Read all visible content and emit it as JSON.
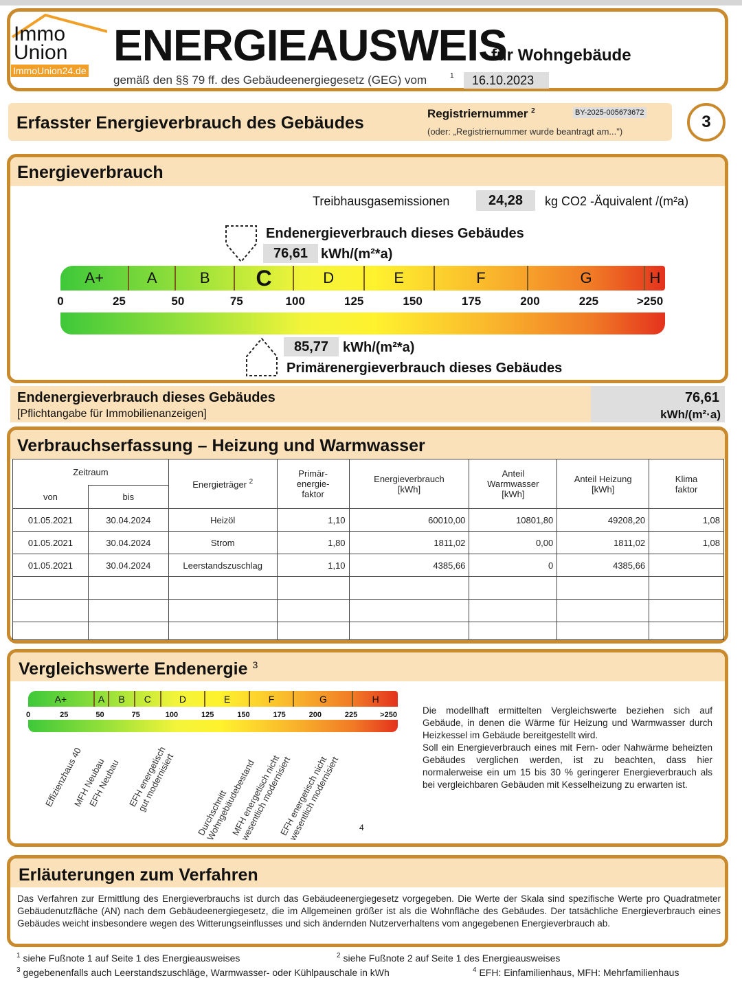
{
  "logo": {
    "line1": "Immo",
    "line2": "Union",
    "sub": "ImmoUnion24.de"
  },
  "header": {
    "title": "ENERGIEAUSWEIS",
    "subtitle": "für Wohngebäude",
    "law": "gemäß den §§ 79 ff. des Gebäudeenergiegesetz (GEG) vom",
    "law_footnote": "1",
    "date": "16.10.2023"
  },
  "section": {
    "title": "Erfasster Energieverbrauch des Gebäudes",
    "reg_label": "Registriernummer",
    "reg_footnote": "2",
    "reg_number": "BY-2025-005673672",
    "reg_note": "(oder: „Registriernummer wurde beantragt am...\")",
    "page": "3"
  },
  "verbrauch": {
    "title": "Energieverbrauch",
    "ghg_label": "Treibhausgasemissionen",
    "ghg_value": "24,28",
    "ghg_unit": "kg CO2 -Äquivalent /(m²a)",
    "end_label": "Endenergieverbrauch dieses Gebäudes",
    "end_value": "76,61",
    "end_unit": "kWh/(m²*a)",
    "prim_label": "Primärenergieverbrauch dieses Gebäudes",
    "prim_value": "85,77",
    "prim_unit": "kWh/(m²*a)",
    "classes": [
      "A+",
      "A",
      "B",
      "C",
      "D",
      "E",
      "F",
      "G",
      "H"
    ],
    "active_class": "C",
    "ticks": [
      "0",
      "25",
      "50",
      "75",
      "100",
      "125",
      "150",
      "175",
      "200",
      "225",
      ">250"
    ]
  },
  "summary": {
    "label": "Endenergieverbrauch dieses Gebäudes",
    "note": "[Pflichtangabe für Immobilienanzeigen]",
    "value": "76,61",
    "unit": "kWh/(m²·a)"
  },
  "erfassung": {
    "title": "Verbrauchserfassung – Heizung und Warmwasser",
    "headers": {
      "zeitraum": "Zeitraum",
      "von": "von",
      "bis": "bis",
      "traeger": "Energieträger",
      "traeger_fn": "2",
      "primaer": "Primär-\nenergie-\nfaktor",
      "verbrauch": "Energieverbrauch\n[kWh]",
      "warmwasser": "Anteil\nWarmwasser\n[kWh]",
      "heizung": "Anteil Heizung\n[kWh]",
      "klima": "Klima\nfaktor"
    },
    "rows": [
      [
        "01.05.2021",
        "30.04.2024",
        "Heizöl",
        "1,10",
        "60010,00",
        "10801,80",
        "49208,20",
        "1,08"
      ],
      [
        "01.05.2021",
        "30.04.2024",
        "Strom",
        "1,80",
        "1811,02",
        "0,00",
        "1811,02",
        "1,08"
      ],
      [
        "01.05.2021",
        "30.04.2024",
        "Leerstandszuschlag",
        "1,10",
        "4385,66",
        "0",
        "4385,66",
        ""
      ],
      [
        "",
        "",
        "",
        "",
        "",
        "",
        "",
        ""
      ],
      [
        "",
        "",
        "",
        "",
        "",
        "",
        "",
        ""
      ],
      [
        "",
        "",
        "",
        "",
        "",
        "",
        "",
        ""
      ]
    ]
  },
  "vergleich": {
    "title": "Vergleichswerte Endenergie",
    "title_fn": "3",
    "fn4": "4",
    "labels": [
      "Effizienzhaus 40",
      "MFH Neubau",
      "EFH Neubau",
      "EFH energetisch\ngut modernisiert",
      "Durchschnitt\nWohngebäudebestand",
      "MFH energetisch nicht\nwesentlich modernisiert",
      "EFH energetisch nicht\nwesentlich modernisiert"
    ],
    "text1": "Die modellhaft ermittelten Vergleichswerte beziehen sich auf Gebäude, in denen die Wärme für Heizung und Warmwasser durch Heizkessel im Gebäude bereitgestellt wird.",
    "text2": "Soll ein Energieverbrauch eines mit Fern- oder Nahwärme beheizten Gebäudes verglichen werden, ist zu beachten, dass hier normalerweise ein um 15 bis 30 % geringerer Energieverbrauch als bei vergleichbaren Gebäuden mit Kesselheizung zu erwarten ist."
  },
  "erlaeuterung": {
    "title": "Erläuterungen zum Verfahren",
    "text": "Das Verfahren zur Ermittlung des Energieverbrauchs ist durch das Gebäudeenergiegesetz vorgegeben. Die Werte der Skala sind spezifische Werte pro Quadratmeter Gebäudenutzfläche (AN) nach dem Gebäudeenergiegesetz, die im Allgemeinen größer ist als die Wohnfläche des Gebäudes. Der tatsächliche Energieverbrauch eines Gebäudes weicht insbesondere wegen des Witterungseinflusses und sich ändernden Nutzerverhaltens vom angegebenen Energieverbrauch ab."
  },
  "footnotes": [
    {
      "n": "1",
      "t": "siehe Fußnote 1 auf Seite 1 des Energieausweises"
    },
    {
      "n": "2",
      "t": "siehe Fußnote 2 auf Seite 1 des Energieausweises"
    },
    {
      "n": "3",
      "t": "gegebenenfalls auch Leerstandszuschläge, Warmwasser- oder Kühlpauschale in kWh"
    },
    {
      "n": "4",
      "t": "EFH: Einfamilienhaus, MFH: Mehrfamilienhaus"
    }
  ]
}
